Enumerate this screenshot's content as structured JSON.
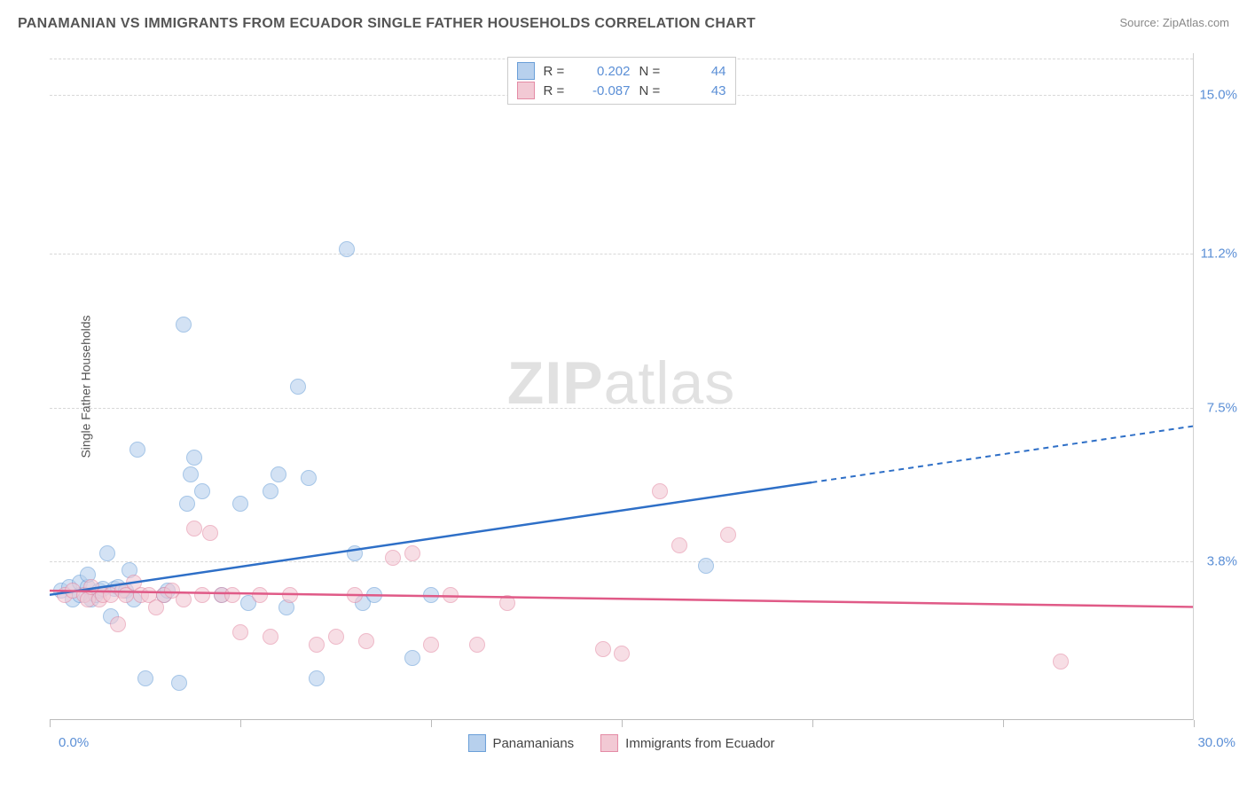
{
  "title": "PANAMANIAN VS IMMIGRANTS FROM ECUADOR SINGLE FATHER HOUSELDS CORRELATION CHART",
  "title_full": "PANAMANIAN VS IMMIGRANTS FROM ECUADOR SINGLE FATHER HOUSEHOLDS CORRELATION CHART",
  "source": "Source: ZipAtlas.com",
  "y_axis_label": "Single Father Households",
  "watermark_a": "ZIP",
  "watermark_b": "atlas",
  "chart": {
    "type": "scatter",
    "background_color": "#ffffff",
    "grid_color": "#d8d8d8",
    "text_color": "#555555",
    "tick_label_color": "#5b8fd6",
    "xlim": [
      0,
      30
    ],
    "ylim": [
      0,
      16
    ],
    "x_tick_positions": [
      0,
      5,
      10,
      15,
      20,
      25,
      30
    ],
    "y_ticks": [
      {
        "value": 3.8,
        "label": "3.8%"
      },
      {
        "value": 7.5,
        "label": "7.5%"
      },
      {
        "value": 11.2,
        "label": "11.2%"
      },
      {
        "value": 15.0,
        "label": "15.0%"
      }
    ],
    "x_label_min": "0.0%",
    "x_label_max": "30.0%",
    "point_radius": 9,
    "point_opacity": 0.6,
    "series": [
      {
        "name": "Panamanians",
        "fill": "#b7d0ed",
        "stroke": "#6a9fd8",
        "line_color": "#2e6fc7",
        "regression": {
          "slope": 0.135,
          "intercept": 3.0,
          "dash_from_x": 20
        },
        "R": "0.202",
        "N": "44",
        "points": [
          [
            0.3,
            3.1
          ],
          [
            0.5,
            3.2
          ],
          [
            0.6,
            2.9
          ],
          [
            0.8,
            3.0
          ],
          [
            0.8,
            3.3
          ],
          [
            1.0,
            3.2
          ],
          [
            1.0,
            3.5
          ],
          [
            1.1,
            2.9
          ],
          [
            1.2,
            3.0
          ],
          [
            1.3,
            3.1
          ],
          [
            1.4,
            3.15
          ],
          [
            1.5,
            4.0
          ],
          [
            1.6,
            2.5
          ],
          [
            1.7,
            3.15
          ],
          [
            1.8,
            3.2
          ],
          [
            2.0,
            3.1
          ],
          [
            2.1,
            3.6
          ],
          [
            2.2,
            2.9
          ],
          [
            2.3,
            6.5
          ],
          [
            2.5,
            1.0
          ],
          [
            3.0,
            3.0
          ],
          [
            3.1,
            3.1
          ],
          [
            3.4,
            0.9
          ],
          [
            3.5,
            9.5
          ],
          [
            3.6,
            5.2
          ],
          [
            3.7,
            5.9
          ],
          [
            3.8,
            6.3
          ],
          [
            4.0,
            5.5
          ],
          [
            4.5,
            3.0
          ],
          [
            5.0,
            5.2
          ],
          [
            5.2,
            2.8
          ],
          [
            5.8,
            5.5
          ],
          [
            6.0,
            5.9
          ],
          [
            6.2,
            2.7
          ],
          [
            6.5,
            8.0
          ],
          [
            6.8,
            5.8
          ],
          [
            7.0,
            1.0
          ],
          [
            7.8,
            11.3
          ],
          [
            8.0,
            4.0
          ],
          [
            8.2,
            2.8
          ],
          [
            8.5,
            3.0
          ],
          [
            9.5,
            1.5
          ],
          [
            10.0,
            3.0
          ],
          [
            17.2,
            3.7
          ]
        ]
      },
      {
        "name": "Immigrants from Ecuador",
        "fill": "#f2c9d4",
        "stroke": "#e48ba5",
        "line_color": "#e05a87",
        "regression": {
          "slope": -0.013,
          "intercept": 3.1,
          "dash_from_x": 30
        },
        "R": "-0.087",
        "N": "43",
        "points": [
          [
            0.4,
            3.0
          ],
          [
            0.6,
            3.1
          ],
          [
            0.9,
            3.0
          ],
          [
            1.0,
            2.9
          ],
          [
            1.1,
            3.2
          ],
          [
            1.3,
            2.9
          ],
          [
            1.4,
            3.0
          ],
          [
            1.6,
            3.0
          ],
          [
            1.8,
            2.3
          ],
          [
            1.9,
            3.1
          ],
          [
            2.0,
            3.0
          ],
          [
            2.2,
            3.3
          ],
          [
            2.4,
            3.0
          ],
          [
            2.6,
            3.0
          ],
          [
            2.8,
            2.7
          ],
          [
            3.0,
            3.0
          ],
          [
            3.2,
            3.1
          ],
          [
            3.5,
            2.9
          ],
          [
            3.8,
            4.6
          ],
          [
            4.0,
            3.0
          ],
          [
            4.2,
            4.5
          ],
          [
            4.5,
            3.0
          ],
          [
            4.8,
            3.0
          ],
          [
            5.0,
            2.1
          ],
          [
            5.5,
            3.0
          ],
          [
            5.8,
            2.0
          ],
          [
            6.3,
            3.0
          ],
          [
            7.0,
            1.8
          ],
          [
            7.5,
            2.0
          ],
          [
            8.0,
            3.0
          ],
          [
            8.3,
            1.9
          ],
          [
            9.0,
            3.9
          ],
          [
            9.5,
            4.0
          ],
          [
            10.0,
            1.8
          ],
          [
            10.5,
            3.0
          ],
          [
            11.2,
            1.8
          ],
          [
            12.0,
            2.8
          ],
          [
            14.5,
            1.7
          ],
          [
            15.0,
            1.6
          ],
          [
            16.0,
            5.5
          ],
          [
            16.5,
            4.2
          ],
          [
            17.8,
            4.45
          ],
          [
            26.5,
            1.4
          ]
        ]
      }
    ],
    "stats_legend": {
      "r_label": "R =",
      "n_label": "N ="
    }
  }
}
